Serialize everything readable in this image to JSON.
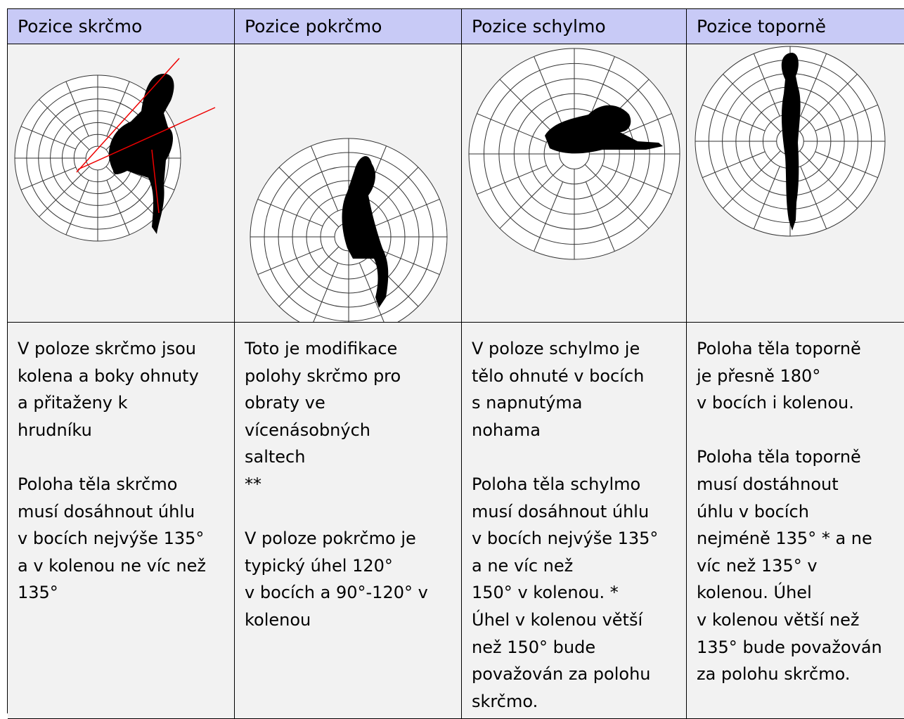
{
  "table": {
    "headers": [
      "Pozice skrčmo",
      "Pozice pokrčmo",
      "Pozice schylmo",
      "Pozice toporně"
    ],
    "descriptions": [
      [
        [
          "V poloze skrčmo jsou",
          "kolena a boky ohnuty",
          "a přitaženy k",
          "hrudníku"
        ],
        [
          "Poloha těla skrčmo",
          "musí dosáhnout úhlu",
          "v bocích nejvýše 135°",
          "a v kolenou ne víc než",
          "135°"
        ]
      ],
      [
        [
          "Toto je modifikace",
          "polohy skrčmo pro",
          "obraty ve",
          "vícenásobných",
          "saltech",
          "**"
        ],
        [
          "V poloze pokrčmo je",
          "typický úhel 120°",
          "v bocích a 90°-120° v",
          "kolenou"
        ]
      ],
      [
        [
          "V poloze schylmo je",
          "tělo ohnuté v bocích",
          "s napnutýma",
          "nohama"
        ],
        [
          "Poloha těla schylmo",
          "musí dosáhnout úhlu",
          "v bocích nejvýše 135°",
          "a ne víc než",
          "150° v kolenou. *",
          "Úhel v kolenou větší",
          "než 150° bude",
          "považován za polohu",
          "skrčmo."
        ]
      ],
      [
        [
          "Poloha těla toporně",
          "je přesně 180°",
          "v bocích i kolenou."
        ],
        [
          "Poloha těla toporně",
          "musí dostáhnout",
          "úhlu v bocích",
          "nejméně 135° * a ne",
          "víc než 135° v",
          "kolenou. Úhel",
          "v kolenou větší než",
          "135° bude považován",
          "za polohu skrčmo."
        ]
      ]
    ]
  }
}
